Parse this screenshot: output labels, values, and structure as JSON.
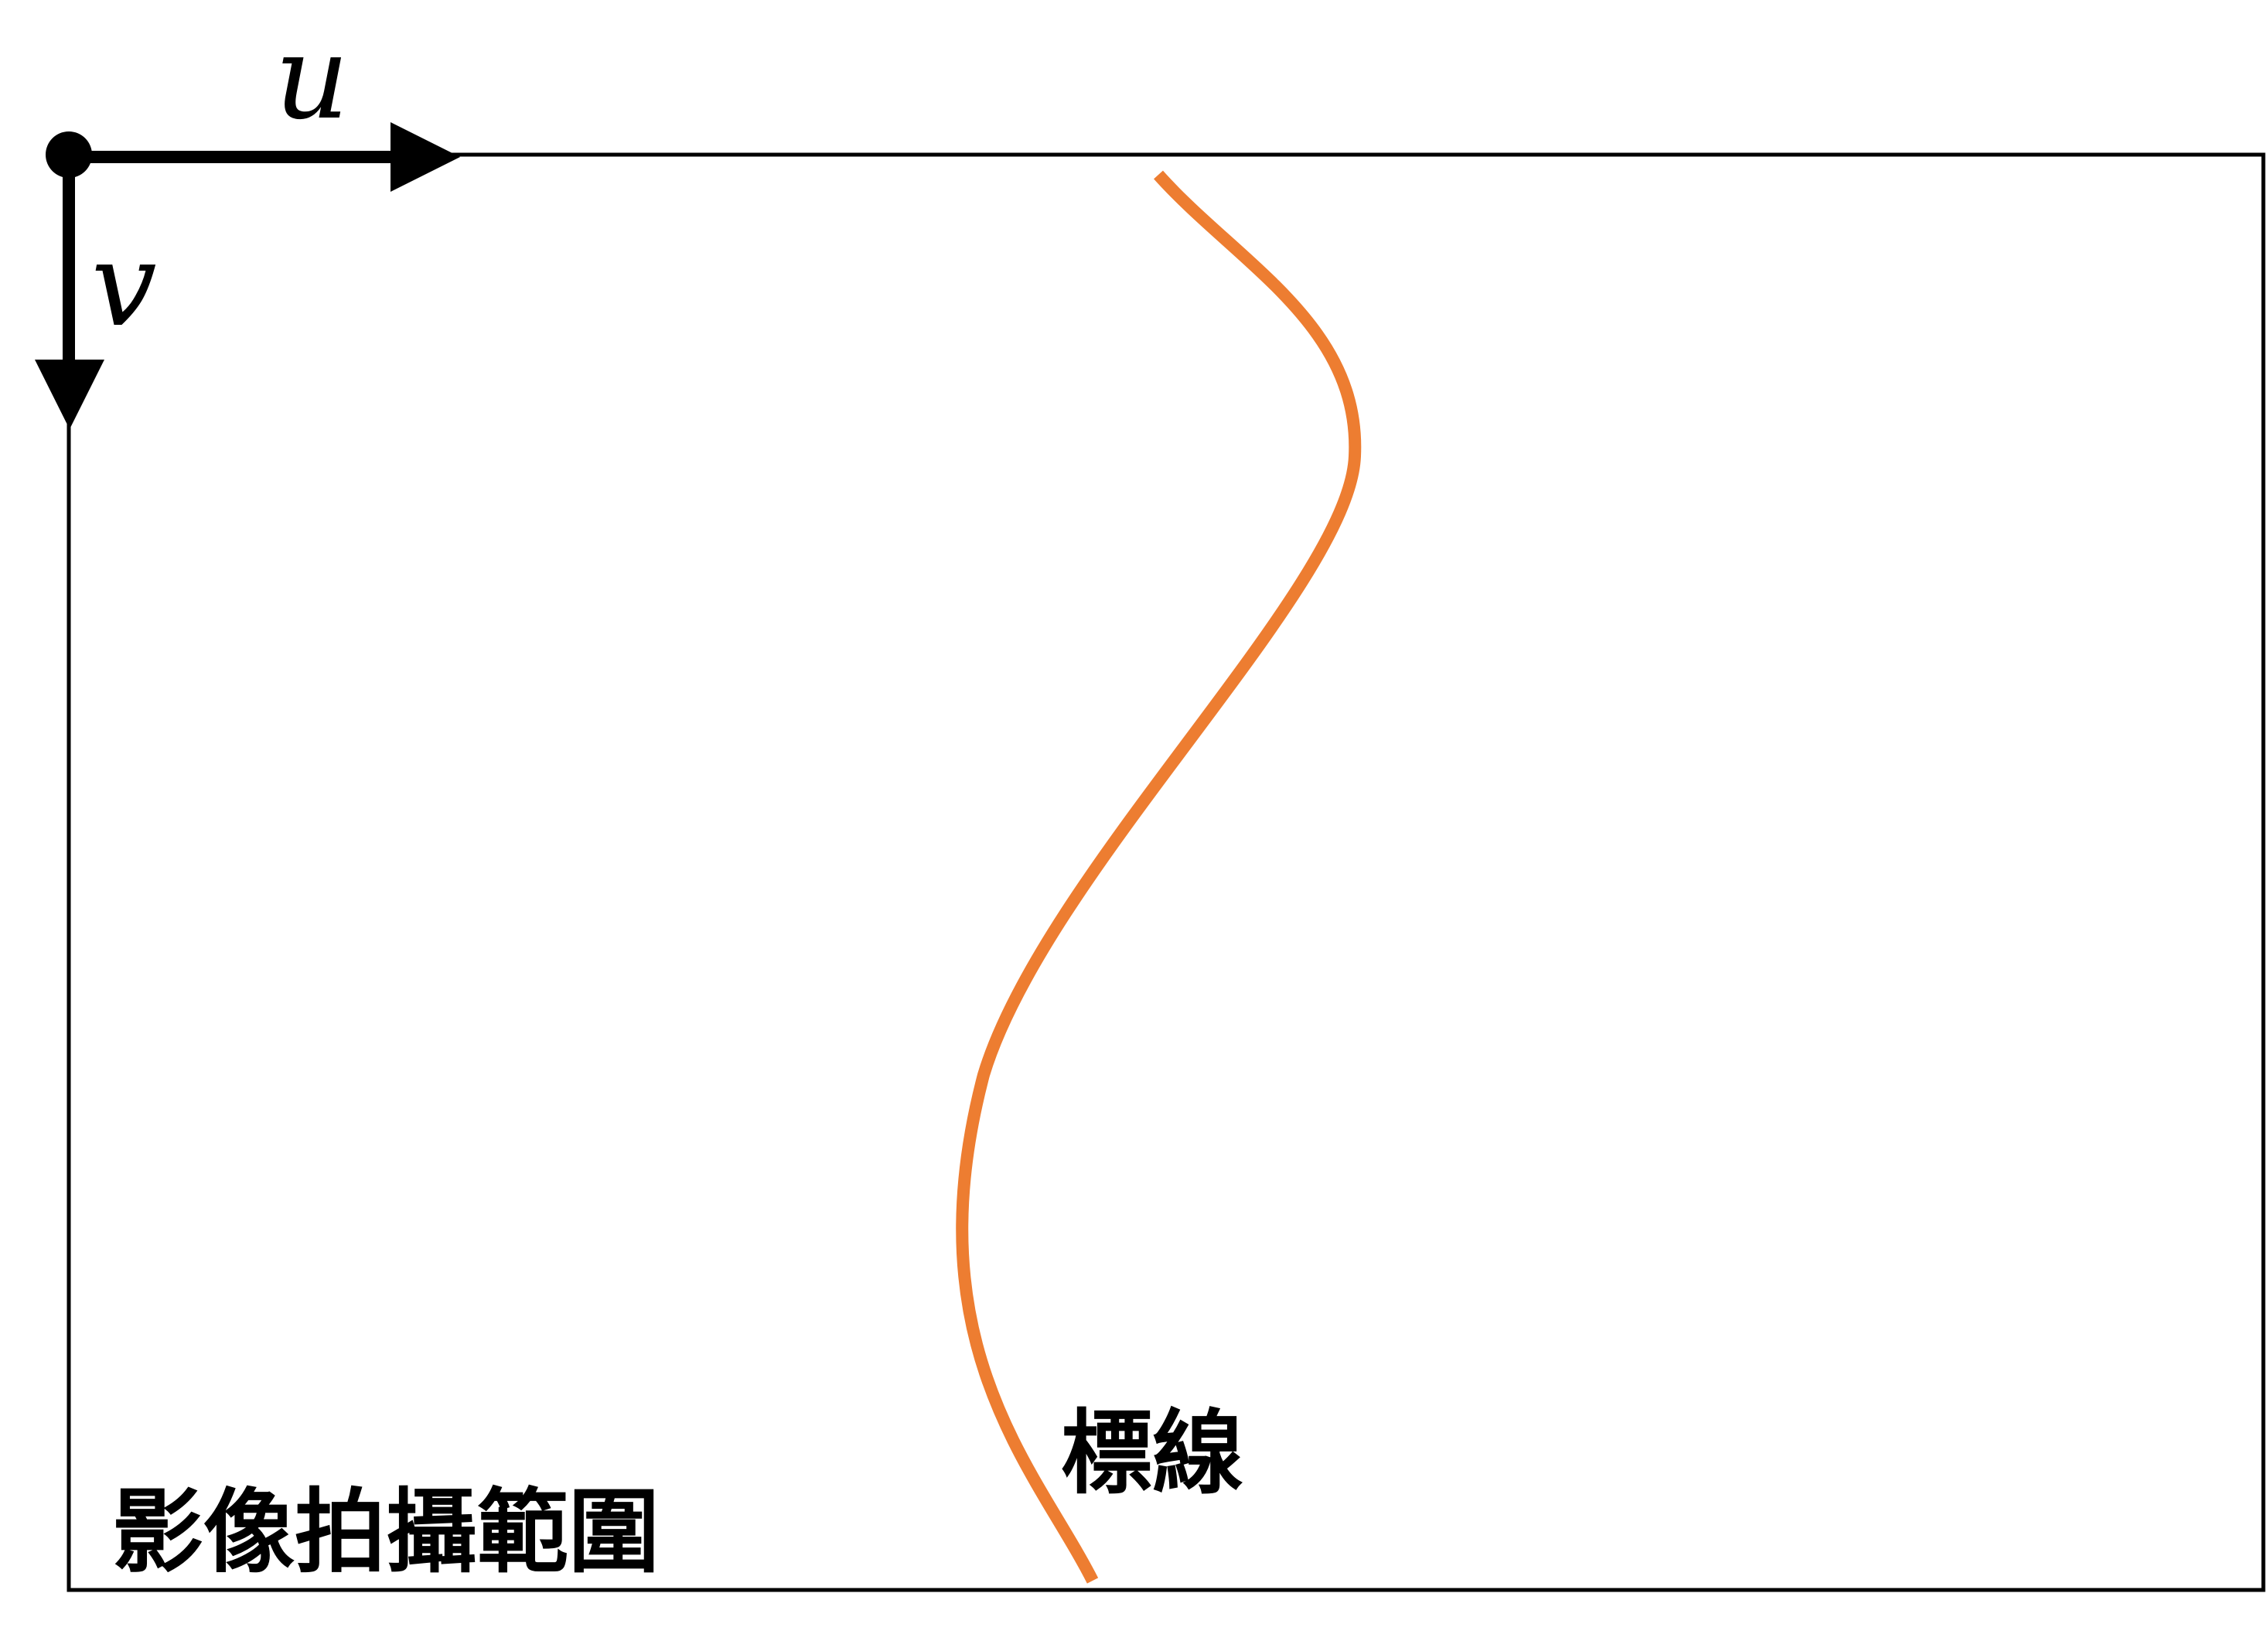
{
  "axes": {
    "u_label": "u",
    "v_label": "v"
  },
  "labels": {
    "marking_line": "標線",
    "image_capture_range": "影像拍攝範圍"
  },
  "colors": {
    "marking_line": "#ED7D31",
    "frame": "#000000",
    "axis": "#000000"
  }
}
